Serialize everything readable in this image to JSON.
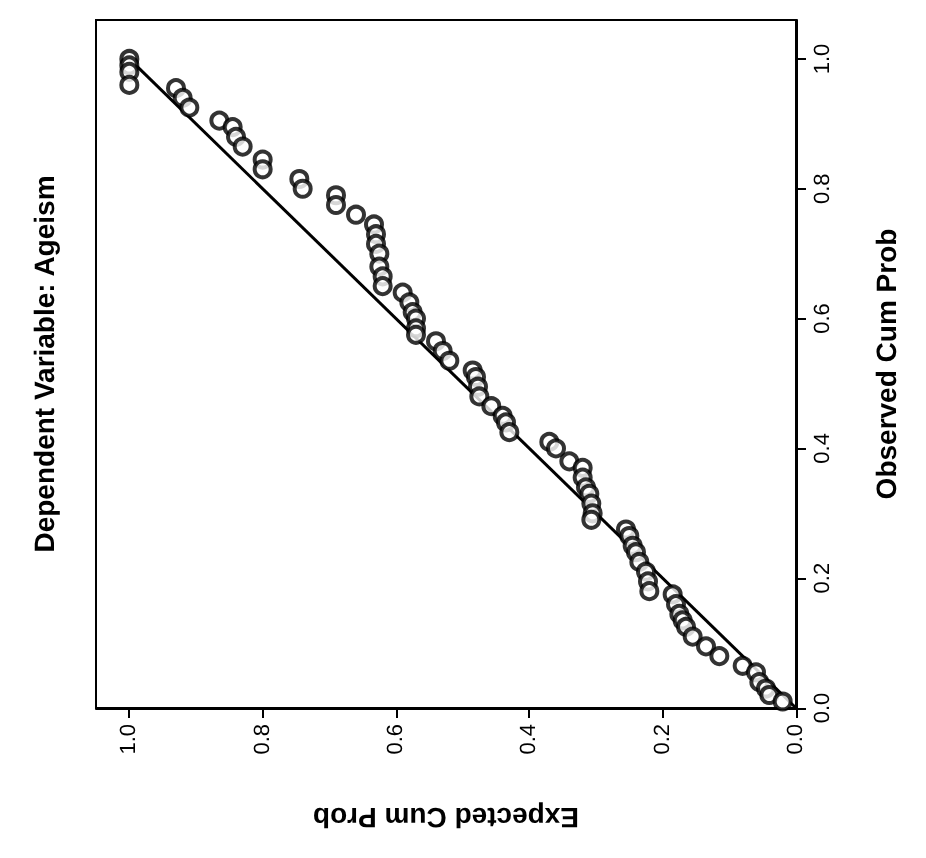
{
  "chart_data": {
    "type": "scatter",
    "title": "Dependent Variable: Ageism",
    "xlabel": "Expected Cum Prob",
    "ylabel": "Observed Cum Prob",
    "xlim": [
      1.05,
      0
    ],
    "ylim": [
      0,
      1.06
    ],
    "xticks": [
      {
        "value": 1,
        "label": "1.0"
      },
      {
        "value": 0.8,
        "label": "0.8"
      },
      {
        "value": 0.6,
        "label": "0.6"
      },
      {
        "value": 0.4,
        "label": "0.4"
      },
      {
        "value": 0.2,
        "label": "0.2"
      },
      {
        "value": 0,
        "label": "0.0"
      }
    ],
    "yticks": [
      {
        "value": 0,
        "label": "0.0"
      },
      {
        "value": 0.2,
        "label": "0.2"
      },
      {
        "value": 0.4,
        "label": "0.4"
      },
      {
        "value": 0.6,
        "label": "0.6"
      },
      {
        "value": 0.8,
        "label": "0.8"
      },
      {
        "value": 1,
        "label": "1.0"
      }
    ],
    "series": [
      {
        "type": "line",
        "color": "#000000",
        "marker": "none",
        "x": [
          0,
          1
        ],
        "values": [
          0,
          1
        ]
      },
      {
        "color": "#000000",
        "marker": "circle",
        "x": [
          1.0,
          1.0,
          1.0,
          1.0,
          0.93,
          0.92,
          0.91,
          0.865,
          0.845,
          0.84,
          0.83,
          0.8,
          0.8,
          0.745,
          0.74,
          0.69,
          0.69,
          0.66,
          0.633,
          0.63,
          0.63,
          0.625,
          0.625,
          0.62,
          0.62,
          0.59,
          0.58,
          0.575,
          0.57,
          0.57,
          0.57,
          0.54,
          0.53,
          0.52,
          0.485,
          0.48,
          0.477,
          0.475,
          0.457,
          0.44,
          0.435,
          0.43,
          0.37,
          0.36,
          0.34,
          0.32,
          0.32,
          0.315,
          0.31,
          0.307,
          0.305,
          0.307,
          0.255,
          0.25,
          0.245,
          0.24,
          0.235,
          0.225,
          0.222,
          0.22,
          0.185,
          0.18,
          0.175,
          0.17,
          0.165,
          0.155,
          0.135,
          0.115,
          0.08,
          0.06,
          0.055,
          0.045,
          0.04,
          0.02
        ],
        "values": [
          1.0,
          0.99,
          0.98,
          0.96,
          0.955,
          0.94,
          0.925,
          0.905,
          0.895,
          0.88,
          0.865,
          0.845,
          0.83,
          0.815,
          0.8,
          0.79,
          0.775,
          0.76,
          0.745,
          0.73,
          0.715,
          0.7,
          0.68,
          0.665,
          0.65,
          0.64,
          0.625,
          0.61,
          0.6,
          0.585,
          0.575,
          0.565,
          0.55,
          0.535,
          0.52,
          0.51,
          0.495,
          0.48,
          0.465,
          0.45,
          0.44,
          0.425,
          0.41,
          0.4,
          0.38,
          0.37,
          0.355,
          0.34,
          0.33,
          0.315,
          0.3,
          0.29,
          0.275,
          0.265,
          0.25,
          0.24,
          0.225,
          0.21,
          0.195,
          0.18,
          0.175,
          0.16,
          0.145,
          0.135,
          0.125,
          0.11,
          0.095,
          0.08,
          0.065,
          0.055,
          0.04,
          0.03,
          0.02,
          0.01
        ]
      }
    ]
  }
}
